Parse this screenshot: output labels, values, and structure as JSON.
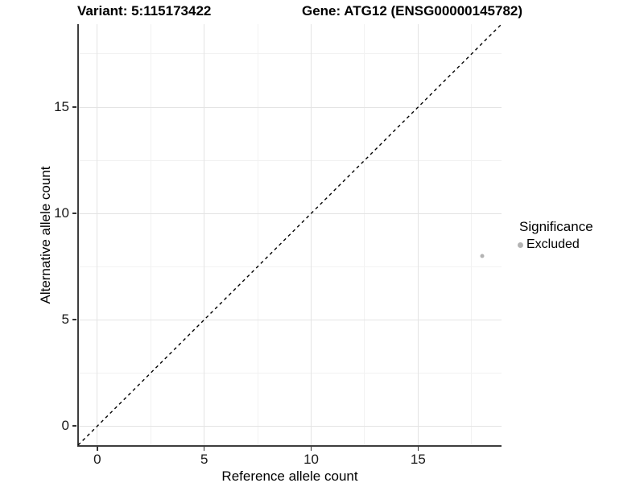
{
  "header": {
    "variant_title": "Variant: 5:115173422",
    "gene_title": "Gene: ATG12 (ENSG00000145782)"
  },
  "chart_data": {
    "type": "scatter",
    "title_left": "Variant: 5:115173422",
    "title_right": "Gene: ATG12 (ENSG00000145782)",
    "xlabel": "Reference allele count",
    "ylabel": "Alternative allele count",
    "xlim": [
      -0.9,
      18.9
    ],
    "ylim": [
      -0.9,
      18.9
    ],
    "x_major_ticks": [
      0,
      5,
      10,
      15
    ],
    "y_major_ticks": [
      0,
      5,
      10,
      15
    ],
    "x_minor_ticks": [
      2.5,
      7.5,
      12.5,
      17.5
    ],
    "y_minor_ticks": [
      2.5,
      7.5,
      12.5,
      17.5
    ],
    "grid": true,
    "identity_line": {
      "style": "dashed",
      "from": -0.9,
      "to": 18.9,
      "color": "#000000",
      "width": 1.4,
      "dash": "4 4"
    },
    "series": [
      {
        "name": "Excluded",
        "color": "#b3b3b3",
        "point_diameter": 5,
        "points": [
          {
            "x": 18,
            "y": 8
          }
        ]
      }
    ],
    "legend": {
      "title": "Significance",
      "position": "right",
      "entries": [
        {
          "label": "Excluded",
          "color": "#b3b3b3"
        }
      ]
    }
  },
  "colors": {
    "background": "#ffffff",
    "axis_line": "#3d3d3d",
    "tick": "#333333",
    "tick_label": "#1a1a1a",
    "grid_major": "#e4e4e4",
    "grid_minor": "#f2f2f2"
  }
}
